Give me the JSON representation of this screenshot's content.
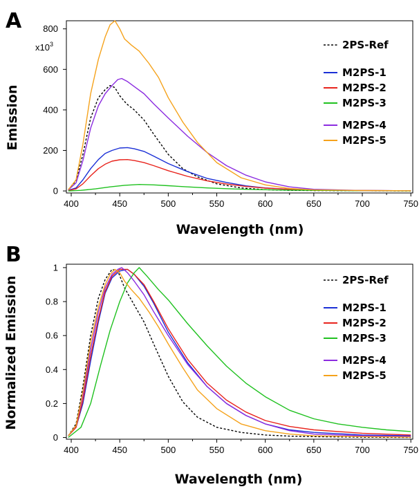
{
  "chart_data": [
    {
      "panel": "A",
      "type": "line",
      "xlabel": "Wavelength (nm)",
      "ylabel": "Emission",
      "y_multiplier": "x10",
      "y_multiplier_exp": "3",
      "xlim": [
        395,
        752
      ],
      "ylim": [
        -10,
        840
      ],
      "xticks": [
        400,
        450,
        500,
        550,
        600,
        650,
        700,
        750
      ],
      "yticks": [
        0,
        200,
        400,
        600,
        800
      ],
      "legend_position": "right",
      "series": [
        {
          "name": "2PS-Ref",
          "color": "#000000",
          "dashed": true,
          "legend_gap": true,
          "x": [
            397,
            405,
            412,
            420,
            428,
            435,
            440,
            445,
            450,
            457,
            465,
            475,
            485,
            500,
            515,
            530,
            550,
            575,
            600,
            625,
            650,
            700,
            750
          ],
          "y": [
            6,
            50,
            180,
            360,
            460,
            500,
            520,
            510,
            470,
            430,
            400,
            350,
            280,
            180,
            110,
            70,
            35,
            15,
            6,
            3,
            2,
            1,
            0
          ]
        },
        {
          "name": "M2PS-1",
          "color": "#1a2fd6",
          "x": [
            397,
            405,
            412,
            420,
            428,
            435,
            442,
            450,
            458,
            465,
            475,
            485,
            500,
            520,
            540,
            560,
            580,
            600,
            625,
            650,
            700,
            750
          ],
          "y": [
            3,
            15,
            55,
            110,
            155,
            185,
            200,
            212,
            214,
            208,
            195,
            172,
            135,
            95,
            62,
            42,
            25,
            15,
            8,
            4,
            2,
            1
          ]
        },
        {
          "name": "M2PS-2",
          "color": "#e8231c",
          "x": [
            397,
            405,
            412,
            420,
            428,
            435,
            442,
            450,
            458,
            465,
            475,
            485,
            500,
            520,
            540,
            560,
            580,
            600,
            625,
            650,
            700,
            750
          ],
          "y": [
            2,
            10,
            35,
            75,
            110,
            132,
            147,
            154,
            155,
            150,
            140,
            125,
            100,
            72,
            50,
            34,
            22,
            14,
            8,
            4,
            2,
            1
          ]
        },
        {
          "name": "M2PS-3",
          "color": "#1fc11f",
          "x": [
            397,
            410,
            425,
            440,
            455,
            470,
            485,
            500,
            520,
            540,
            560,
            580,
            600,
            625,
            650,
            700,
            750
          ],
          "y": [
            0,
            3,
            10,
            20,
            28,
            32,
            30,
            26,
            20,
            15,
            11,
            8,
            6,
            4,
            3,
            1,
            0
          ]
        },
        {
          "name": "M2PS-4",
          "color": "#8b2be0",
          "legend_gap": true,
          "x": [
            397,
            405,
            412,
            420,
            428,
            435,
            442,
            448,
            452,
            458,
            465,
            475,
            485,
            500,
            520,
            540,
            560,
            580,
            600,
            625,
            650,
            700,
            750
          ],
          "y": [
            5,
            40,
            150,
            310,
            420,
            480,
            520,
            550,
            555,
            540,
            515,
            480,
            430,
            360,
            270,
            190,
            125,
            78,
            45,
            20,
            8,
            2,
            1
          ]
        },
        {
          "name": "M2PS-5",
          "color": "#f5a21b",
          "x": [
            397,
            405,
            412,
            420,
            428,
            435,
            440,
            445,
            450,
            455,
            462,
            470,
            480,
            490,
            500,
            515,
            530,
            550,
            575,
            600,
            625,
            650,
            700,
            750
          ],
          "y": [
            6,
            55,
            230,
            480,
            650,
            760,
            820,
            840,
            800,
            750,
            720,
            690,
            630,
            560,
            460,
            340,
            240,
            140,
            65,
            30,
            12,
            5,
            2,
            1
          ]
        }
      ]
    },
    {
      "panel": "B",
      "type": "line",
      "xlabel": "Wavelength (nm)",
      "ylabel": "Normalized Emission",
      "xlim": [
        395,
        752
      ],
      "ylim": [
        -0.01,
        1.02
      ],
      "xticks": [
        400,
        450,
        500,
        550,
        600,
        650,
        700,
        750
      ],
      "yticks": [
        0,
        0.2,
        0.4,
        0.6,
        0.8,
        1
      ],
      "legend_position": "right",
      "series": [
        {
          "name": "2PS-Ref",
          "color": "#000000",
          "dashed": true,
          "legend_gap": true,
          "x": [
            397,
            405,
            412,
            420,
            428,
            435,
            442,
            448,
            455,
            465,
            475,
            485,
            500,
            515,
            530,
            550,
            575,
            600,
            625,
            650,
            700,
            750
          ],
          "y": [
            0.01,
            0.08,
            0.3,
            0.6,
            0.82,
            0.93,
            0.99,
            0.98,
            0.88,
            0.78,
            0.68,
            0.55,
            0.36,
            0.21,
            0.12,
            0.06,
            0.03,
            0.015,
            0.008,
            0.005,
            0.002,
            0.0
          ]
        },
        {
          "name": "M2PS-1",
          "color": "#1a2fd6",
          "x": [
            397,
            405,
            412,
            420,
            428,
            435,
            442,
            450,
            458,
            465,
            475,
            485,
            500,
            520,
            540,
            560,
            580,
            600,
            625,
            650,
            700,
            750
          ],
          "y": [
            0.01,
            0.06,
            0.2,
            0.45,
            0.68,
            0.85,
            0.94,
            0.98,
            0.99,
            0.96,
            0.89,
            0.79,
            0.62,
            0.44,
            0.3,
            0.2,
            0.13,
            0.08,
            0.045,
            0.03,
            0.015,
            0.01
          ]
        },
        {
          "name": "M2PS-2",
          "color": "#e8231c",
          "x": [
            397,
            405,
            412,
            420,
            428,
            435,
            442,
            450,
            458,
            465,
            475,
            485,
            500,
            520,
            540,
            560,
            580,
            600,
            625,
            650,
            700,
            750
          ],
          "y": [
            0.01,
            0.06,
            0.22,
            0.48,
            0.7,
            0.86,
            0.95,
            0.99,
            0.99,
            0.96,
            0.9,
            0.8,
            0.64,
            0.46,
            0.32,
            0.22,
            0.15,
            0.1,
            0.065,
            0.045,
            0.025,
            0.015
          ]
        },
        {
          "name": "M2PS-3",
          "color": "#1fc11f",
          "x": [
            397,
            410,
            420,
            430,
            440,
            450,
            458,
            465,
            470,
            478,
            490,
            500,
            520,
            540,
            560,
            580,
            600,
            625,
            650,
            675,
            700,
            725,
            750
          ],
          "y": [
            0.0,
            0.06,
            0.2,
            0.42,
            0.63,
            0.8,
            0.91,
            0.97,
            1.0,
            0.95,
            0.87,
            0.81,
            0.67,
            0.54,
            0.42,
            0.32,
            0.24,
            0.16,
            0.11,
            0.08,
            0.06,
            0.045,
            0.035
          ]
        },
        {
          "name": "M2PS-4",
          "color": "#8b2be0",
          "legend_gap": true,
          "x": [
            397,
            405,
            412,
            420,
            428,
            435,
            442,
            448,
            452,
            458,
            465,
            475,
            485,
            500,
            520,
            540,
            560,
            580,
            600,
            625,
            650,
            700,
            750
          ],
          "y": [
            0.01,
            0.07,
            0.25,
            0.52,
            0.74,
            0.88,
            0.96,
            0.99,
            1.0,
            0.97,
            0.92,
            0.84,
            0.74,
            0.6,
            0.43,
            0.3,
            0.2,
            0.13,
            0.08,
            0.04,
            0.02,
            0.01,
            0.005
          ]
        },
        {
          "name": "M2PS-5",
          "color": "#f5a21b",
          "x": [
            397,
            405,
            412,
            420,
            428,
            435,
            440,
            445,
            450,
            455,
            462,
            470,
            480,
            490,
            500,
            515,
            530,
            550,
            575,
            600,
            625,
            650,
            700,
            750
          ],
          "y": [
            0.01,
            0.07,
            0.27,
            0.56,
            0.77,
            0.9,
            0.96,
            0.99,
            0.97,
            0.92,
            0.87,
            0.82,
            0.74,
            0.65,
            0.55,
            0.41,
            0.28,
            0.17,
            0.08,
            0.04,
            0.02,
            0.01,
            0.005,
            0.002
          ]
        }
      ]
    }
  ]
}
